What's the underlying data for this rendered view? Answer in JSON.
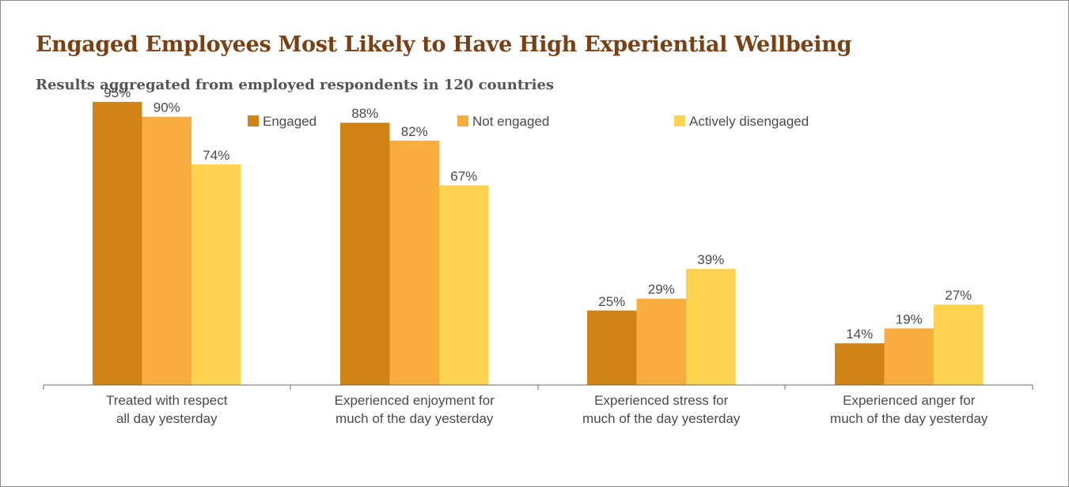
{
  "title": "Engaged Employees Most Likely to Have High Experiential Wellbeing",
  "subtitle": "Results aggregated from employed respondents in 120 countries",
  "chart_data": {
    "type": "bar",
    "categories": [
      [
        "Treated with respect",
        "all day yesterday"
      ],
      [
        "Experienced enjoyment for",
        "much of the day yesterday"
      ],
      [
        "Experienced stress for",
        "much of the day yesterday"
      ],
      [
        "Experienced anger for",
        "much of the day yesterday"
      ]
    ],
    "series": [
      {
        "name": "Engaged",
        "color": "#d08417",
        "values": [
          95,
          88,
          25,
          14
        ]
      },
      {
        "name": "Not engaged",
        "color": "#f8ad3e",
        "values": [
          90,
          82,
          29,
          19
        ]
      },
      {
        "name": "Actively disengaged",
        "color": "#fdd34f",
        "values": [
          74,
          67,
          39,
          27
        ]
      }
    ],
    "value_suffix": "%",
    "ylim": [
      0,
      100
    ],
    "grid": false,
    "legend_position": "top-center"
  }
}
